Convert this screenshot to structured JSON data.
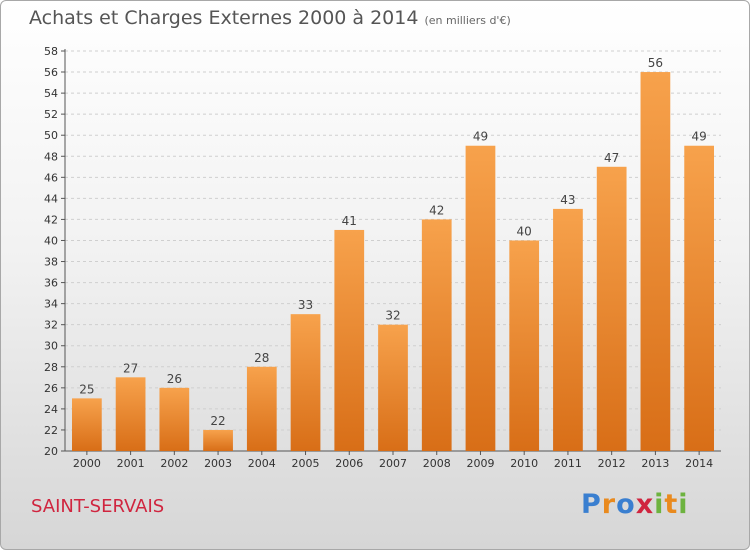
{
  "header": {
    "title": "Achats et Charges Externes 2000 à 2014",
    "subtitle": "(en milliers d'€)"
  },
  "footer": {
    "town": "SAINT-SERVAIS",
    "brand": [
      "P",
      "r",
      "o",
      "x",
      "i",
      "t",
      "i"
    ],
    "brand_colors": [
      "#3a7fd0",
      "#e98a1e",
      "#3a7fd0",
      "#d0253f",
      "#6db33f",
      "#e98a1e",
      "#6db33f"
    ]
  },
  "chart_data": {
    "type": "bar",
    "title": "Achats et Charges Externes 2000 à 2014",
    "subtitle": "(en milliers d'€)",
    "categories": [
      "2000",
      "2001",
      "2002",
      "2003",
      "2004",
      "2005",
      "2006",
      "2007",
      "2008",
      "2009",
      "2010",
      "2011",
      "2012",
      "2013",
      "2014"
    ],
    "values": [
      25,
      27,
      26,
      22,
      28,
      33,
      41,
      32,
      42,
      49,
      40,
      43,
      47,
      56,
      49
    ],
    "ylim": [
      20,
      58
    ],
    "yticks": [
      20,
      22,
      24,
      26,
      28,
      30,
      32,
      34,
      36,
      38,
      40,
      42,
      44,
      46,
      48,
      50,
      52,
      54,
      56,
      58
    ],
    "grid": true,
    "bar_color_top": "#f7a24c",
    "bar_color_bottom": "#d86e17"
  }
}
